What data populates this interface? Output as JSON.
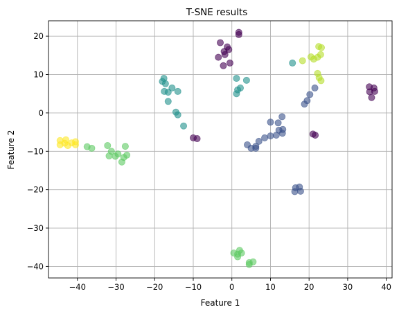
{
  "chart_data": {
    "type": "scatter",
    "title": "T-SNE results",
    "xlabel": "Feature 1",
    "ylabel": "Feature 2",
    "xlim": [
      -47.5,
      41.5
    ],
    "ylim": [
      -43,
      24
    ],
    "xticks": [
      -40,
      -30,
      -20,
      -10,
      0,
      10,
      20,
      30,
      40
    ],
    "yticks": [
      -40,
      -30,
      -20,
      -10,
      0,
      10,
      20
    ],
    "grid": true,
    "marker_alpha": 0.6,
    "series": [
      {
        "color": "#440154",
        "points": [
          [
            -3,
            18.3
          ],
          [
            -1.2,
            17.2
          ],
          [
            -0.8,
            16.5
          ],
          [
            -2,
            16
          ],
          [
            -1.8,
            15.2
          ],
          [
            -3.5,
            14.5
          ],
          [
            -0.5,
            13
          ],
          [
            -2.2,
            12.3
          ],
          [
            1.8,
            21
          ],
          [
            1.8,
            20.4
          ],
          [
            -10,
            -6.5
          ],
          [
            -9,
            -6.7
          ],
          [
            35.6,
            6.8
          ],
          [
            36.8,
            6.5
          ],
          [
            35.7,
            5.5
          ],
          [
            37,
            5.6
          ],
          [
            36.2,
            4
          ],
          [
            21,
            -5.5
          ],
          [
            21.6,
            -5.8
          ]
        ]
      },
      {
        "color": "#3b528b",
        "points": [
          [
            4,
            -8.3
          ],
          [
            5,
            -9.2
          ],
          [
            6.2,
            -8.7
          ],
          [
            7,
            -7.4
          ],
          [
            8.5,
            -6.5
          ],
          [
            10,
            -6
          ],
          [
            11.5,
            -5.8
          ],
          [
            12.2,
            -4.5
          ],
          [
            13.2,
            -4.3
          ],
          [
            13.1,
            -5.3
          ],
          [
            10,
            -2.4
          ],
          [
            12,
            -2.6
          ],
          [
            13,
            -1
          ],
          [
            6.2,
            -9.2
          ],
          [
            16.5,
            -19.5
          ],
          [
            17.5,
            -19.3
          ],
          [
            16.3,
            -20.5
          ],
          [
            17.8,
            -20.4
          ],
          [
            19.5,
            3.2
          ],
          [
            18.8,
            2.3
          ],
          [
            20.2,
            4.8
          ],
          [
            21.5,
            6.5
          ]
        ]
      },
      {
        "color": "#21918c",
        "points": [
          [
            -18,
            8.2
          ],
          [
            -17.6,
            9
          ],
          [
            -17.2,
            7.6
          ],
          [
            -17.5,
            5.6
          ],
          [
            -16.5,
            5.4
          ],
          [
            -15.5,
            6.5
          ],
          [
            -14,
            5.6
          ],
          [
            -16.5,
            3
          ],
          [
            -14.5,
            0.2
          ],
          [
            -14,
            -0.5
          ],
          [
            -12.5,
            -3.4
          ],
          [
            1.2,
            9
          ],
          [
            1.5,
            6
          ],
          [
            2.2,
            6.5
          ],
          [
            1.2,
            5
          ],
          [
            3.8,
            8.5
          ],
          [
            15.7,
            13
          ]
        ]
      },
      {
        "color": "#5ec962",
        "points": [
          [
            -37.5,
            -8.8
          ],
          [
            -36.3,
            -9.2
          ],
          [
            -32.2,
            -8.5
          ],
          [
            -31.2,
            -10
          ],
          [
            -31.8,
            -11.2
          ],
          [
            -30.2,
            -11.3
          ],
          [
            -29.5,
            -10.7
          ],
          [
            -28,
            -11.6
          ],
          [
            -27.6,
            -8.7
          ],
          [
            -27.2,
            -11
          ],
          [
            -28.5,
            -12.8
          ],
          [
            0.5,
            -36.5
          ],
          [
            1.5,
            -36.8
          ],
          [
            2,
            -35.8
          ],
          [
            2.5,
            -36.5
          ],
          [
            1.5,
            -37.5
          ],
          [
            4.5,
            -39
          ],
          [
            5.5,
            -38.8
          ],
          [
            4.5,
            -39.5
          ]
        ]
      },
      {
        "color": "#b5de2b",
        "points": [
          [
            20.5,
            14.6
          ],
          [
            21.2,
            14
          ],
          [
            22.2,
            14.5
          ],
          [
            23,
            15.2
          ],
          [
            22.5,
            17.3
          ],
          [
            23.2,
            17
          ],
          [
            22.2,
            10.3
          ],
          [
            22.6,
            9.2
          ],
          [
            23.1,
            8.4
          ],
          [
            18.3,
            13.6
          ]
        ]
      },
      {
        "color": "#fde725",
        "points": [
          [
            -44.5,
            -7.2
          ],
          [
            -43,
            -7
          ],
          [
            -41.5,
            -7.8
          ],
          [
            -43.3,
            -7.9
          ],
          [
            -44.5,
            -8.3
          ],
          [
            -42.5,
            -8.5
          ],
          [
            -40.5,
            -8.3
          ],
          [
            -40.5,
            -7.5
          ]
        ]
      }
    ]
  }
}
